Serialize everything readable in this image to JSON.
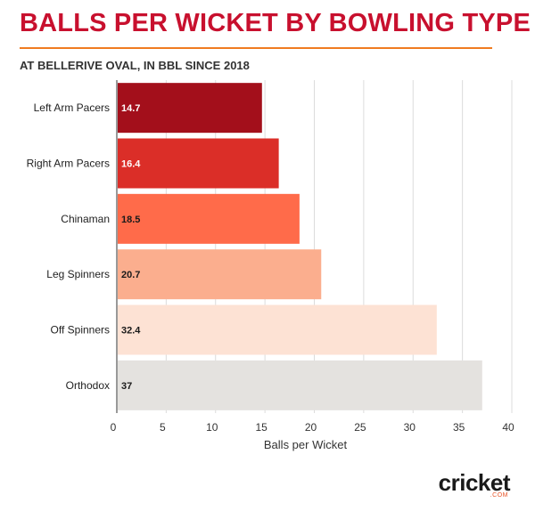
{
  "title": "BALLS PER WICKET BY BOWLING TYPE",
  "subtitle": "AT BELLERIVE OVAL, IN BBL SINCE 2018",
  "logo": {
    "main": "cricket",
    "sub": ".COM"
  },
  "chart_data": {
    "type": "bar",
    "orientation": "horizontal",
    "categories": [
      "Left Arm Pacers",
      "Right Arm Pacers",
      "Chinaman",
      "Leg Spinners",
      "Off Spinners",
      "Orthodox"
    ],
    "values": [
      14.7,
      16.4,
      18.5,
      20.7,
      32.4,
      37
    ],
    "value_labels": [
      "14.7",
      "16.4",
      "18.5",
      "20.7",
      "32.4",
      "37"
    ],
    "colors": [
      "#a30f1b",
      "#db2e28",
      "#ff6b4a",
      "#fbae8e",
      "#fde2d4",
      "#e4e2df"
    ],
    "label_colors": [
      "#ffffff",
      "#ffffff",
      "#1a1a1a",
      "#1a1a1a",
      "#1a1a1a",
      "#1a1a1a"
    ],
    "xlabel": "Balls per Wicket",
    "ylabel": "",
    "xlim": [
      0,
      40
    ],
    "xticks": [
      0,
      5,
      10,
      15,
      20,
      25,
      30,
      35,
      40
    ],
    "grid": true,
    "legend": "none"
  }
}
